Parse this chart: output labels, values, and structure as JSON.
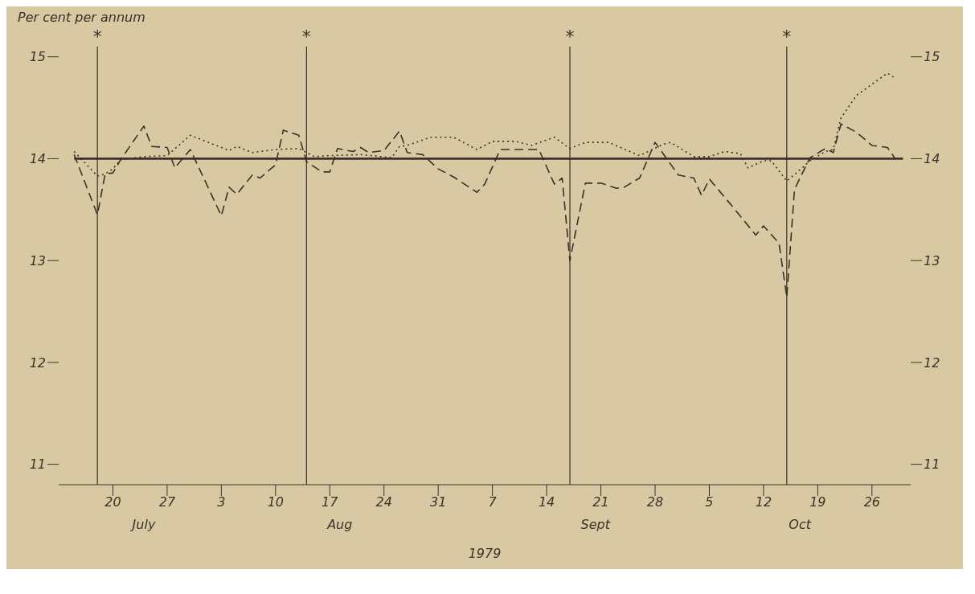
{
  "chart_data": {
    "type": "line",
    "ylabel": "Per cent per annum",
    "xlabel": "1979",
    "xlim": [
      "1979-07-13",
      "1979-10-31"
    ],
    "xticks": [
      {
        "value": "1979-07-20",
        "label": "20"
      },
      {
        "value": "1979-07-27",
        "label": "27"
      },
      {
        "value": "1979-08-03",
        "label": "3"
      },
      {
        "value": "1979-08-10",
        "label": "10"
      },
      {
        "value": "1979-08-17",
        "label": "17"
      },
      {
        "value": "1979-08-24",
        "label": "24"
      },
      {
        "value": "1979-08-31",
        "label": "31"
      },
      {
        "value": "1979-09-07",
        "label": "7"
      },
      {
        "value": "1979-09-14",
        "label": "14"
      },
      {
        "value": "1979-09-21",
        "label": "21"
      },
      {
        "value": "1979-09-28",
        "label": "28"
      },
      {
        "value": "1979-10-05",
        "label": "5"
      },
      {
        "value": "1979-10-12",
        "label": "12"
      },
      {
        "value": "1979-10-19",
        "label": "19"
      },
      {
        "value": "1979-10-26",
        "label": "26"
      }
    ],
    "ylim": [
      10.8,
      15.1
    ],
    "yticks": [
      11,
      12,
      13,
      14,
      15
    ],
    "y2lim": [
      10.8,
      15.1
    ],
    "y2ticks": [
      11,
      12,
      13,
      14,
      15
    ],
    "annotations": [
      "July",
      "Aug",
      "Sept",
      "Oct"
    ],
    "ref_lines": [
      {
        "axis": "x",
        "value": "1979-07-18",
        "label": "*",
        "color": "#3a3228"
      },
      {
        "axis": "x",
        "value": "1979-08-14",
        "label": "*",
        "color": "#3a3228"
      },
      {
        "axis": "x",
        "value": "1979-09-17",
        "label": "*",
        "color": "#3a3228"
      },
      {
        "axis": "x",
        "value": "1979-10-15",
        "label": "*",
        "color": "#3a3228"
      }
    ],
    "series": [
      {
        "color": "#3a3228",
        "line_style": "solid",
        "x": [
          "1979-07-15",
          "1979-10-30"
        ],
        "values": [
          14.0,
          14.0
        ]
      },
      {
        "color": "#3a3228",
        "line_style": "dashed",
        "x": [
          "1979-07-15",
          "1979-07-18",
          "1979-07-19",
          "1979-07-20",
          "1979-07-21",
          "1979-07-24",
          "1979-07-25",
          "1979-07-27",
          "1979-07-28",
          "1979-07-30",
          "1979-08-03",
          "1979-08-04",
          "1979-08-05",
          "1979-08-07",
          "1979-08-08",
          "1979-08-10",
          "1979-08-11",
          "1979-08-13",
          "1979-08-14",
          "1979-08-16",
          "1979-08-17",
          "1979-08-18",
          "1979-08-20",
          "1979-08-21",
          "1979-08-22",
          "1979-08-24",
          "1979-08-26",
          "1979-08-27",
          "1979-08-29",
          "1979-08-31",
          "1979-09-02",
          "1979-09-05",
          "1979-09-06",
          "1979-09-08",
          "1979-09-12",
          "1979-09-13",
          "1979-09-15",
          "1979-09-16",
          "1979-09-17",
          "1979-09-19",
          "1979-09-21",
          "1979-09-23",
          "1979-09-24",
          "1979-09-26",
          "1979-09-28",
          "1979-10-01",
          "1979-10-03",
          "1979-10-04",
          "1979-10-05",
          "1979-10-08",
          "1979-10-11",
          "1979-10-12",
          "1979-10-14",
          "1979-10-15",
          "1979-10-16",
          "1979-10-18",
          "1979-10-20",
          "1979-10-21",
          "1979-10-22",
          "1979-10-24",
          "1979-10-26",
          "1979-10-28",
          "1979-10-29"
        ],
        "values": [
          14.04,
          13.45,
          13.85,
          13.86,
          13.99,
          14.32,
          14.12,
          14.11,
          13.91,
          14.09,
          13.44,
          13.72,
          13.65,
          13.84,
          13.81,
          13.94,
          14.28,
          14.23,
          13.97,
          13.87,
          13.87,
          14.1,
          14.07,
          14.11,
          14.06,
          14.08,
          14.27,
          14.06,
          14.04,
          13.9,
          13.82,
          13.67,
          13.75,
          14.09,
          14.09,
          14.09,
          13.75,
          13.81,
          13.0,
          13.76,
          13.76,
          13.71,
          13.72,
          13.81,
          14.16,
          13.84,
          13.81,
          13.64,
          13.8,
          13.53,
          13.25,
          13.34,
          13.17,
          12.64,
          13.7,
          14.01,
          14.1,
          14.06,
          14.34,
          14.26,
          14.13,
          14.11,
          14.0
        ]
      },
      {
        "color": "#3a3228",
        "line_style": "dotted",
        "x": [
          "1979-07-15",
          "1979-07-18",
          "1979-07-19",
          "1979-07-20",
          "1979-07-21",
          "1979-07-24",
          "1979-07-27",
          "1979-07-30",
          "1979-08-04",
          "1979-08-05",
          "1979-08-07",
          "1979-08-10",
          "1979-08-13",
          "1979-08-15",
          "1979-08-17",
          "1979-08-21",
          "1979-08-25",
          "1979-08-26",
          "1979-08-27",
          "1979-08-30",
          "1979-09-02",
          "1979-09-05",
          "1979-09-07",
          "1979-09-10",
          "1979-09-12",
          "1979-09-15",
          "1979-09-17",
          "1979-09-19",
          "1979-09-22",
          "1979-09-26",
          "1979-09-29",
          "1979-09-30",
          "1979-10-03",
          "1979-10-05",
          "1979-10-07",
          "1979-10-09",
          "1979-10-10",
          "1979-10-12",
          "1979-10-13",
          "1979-10-15",
          "1979-10-17",
          "1979-10-18",
          "1979-10-20",
          "1979-10-21",
          "1979-10-22",
          "1979-10-24",
          "1979-10-28",
          "1979-10-29"
        ],
        "values": [
          14.07,
          13.83,
          13.85,
          13.9,
          13.99,
          14.02,
          14.03,
          14.23,
          14.08,
          14.12,
          14.06,
          14.09,
          14.1,
          14.02,
          14.03,
          14.04,
          14.01,
          14.12,
          14.13,
          14.21,
          14.21,
          14.09,
          14.17,
          14.17,
          14.13,
          14.21,
          14.1,
          14.16,
          14.16,
          14.03,
          14.14,
          14.16,
          14.02,
          14.02,
          14.07,
          14.05,
          13.91,
          13.98,
          13.98,
          13.78,
          13.91,
          13.98,
          14.07,
          14.09,
          14.4,
          14.62,
          14.84,
          14.79
        ]
      }
    ]
  }
}
